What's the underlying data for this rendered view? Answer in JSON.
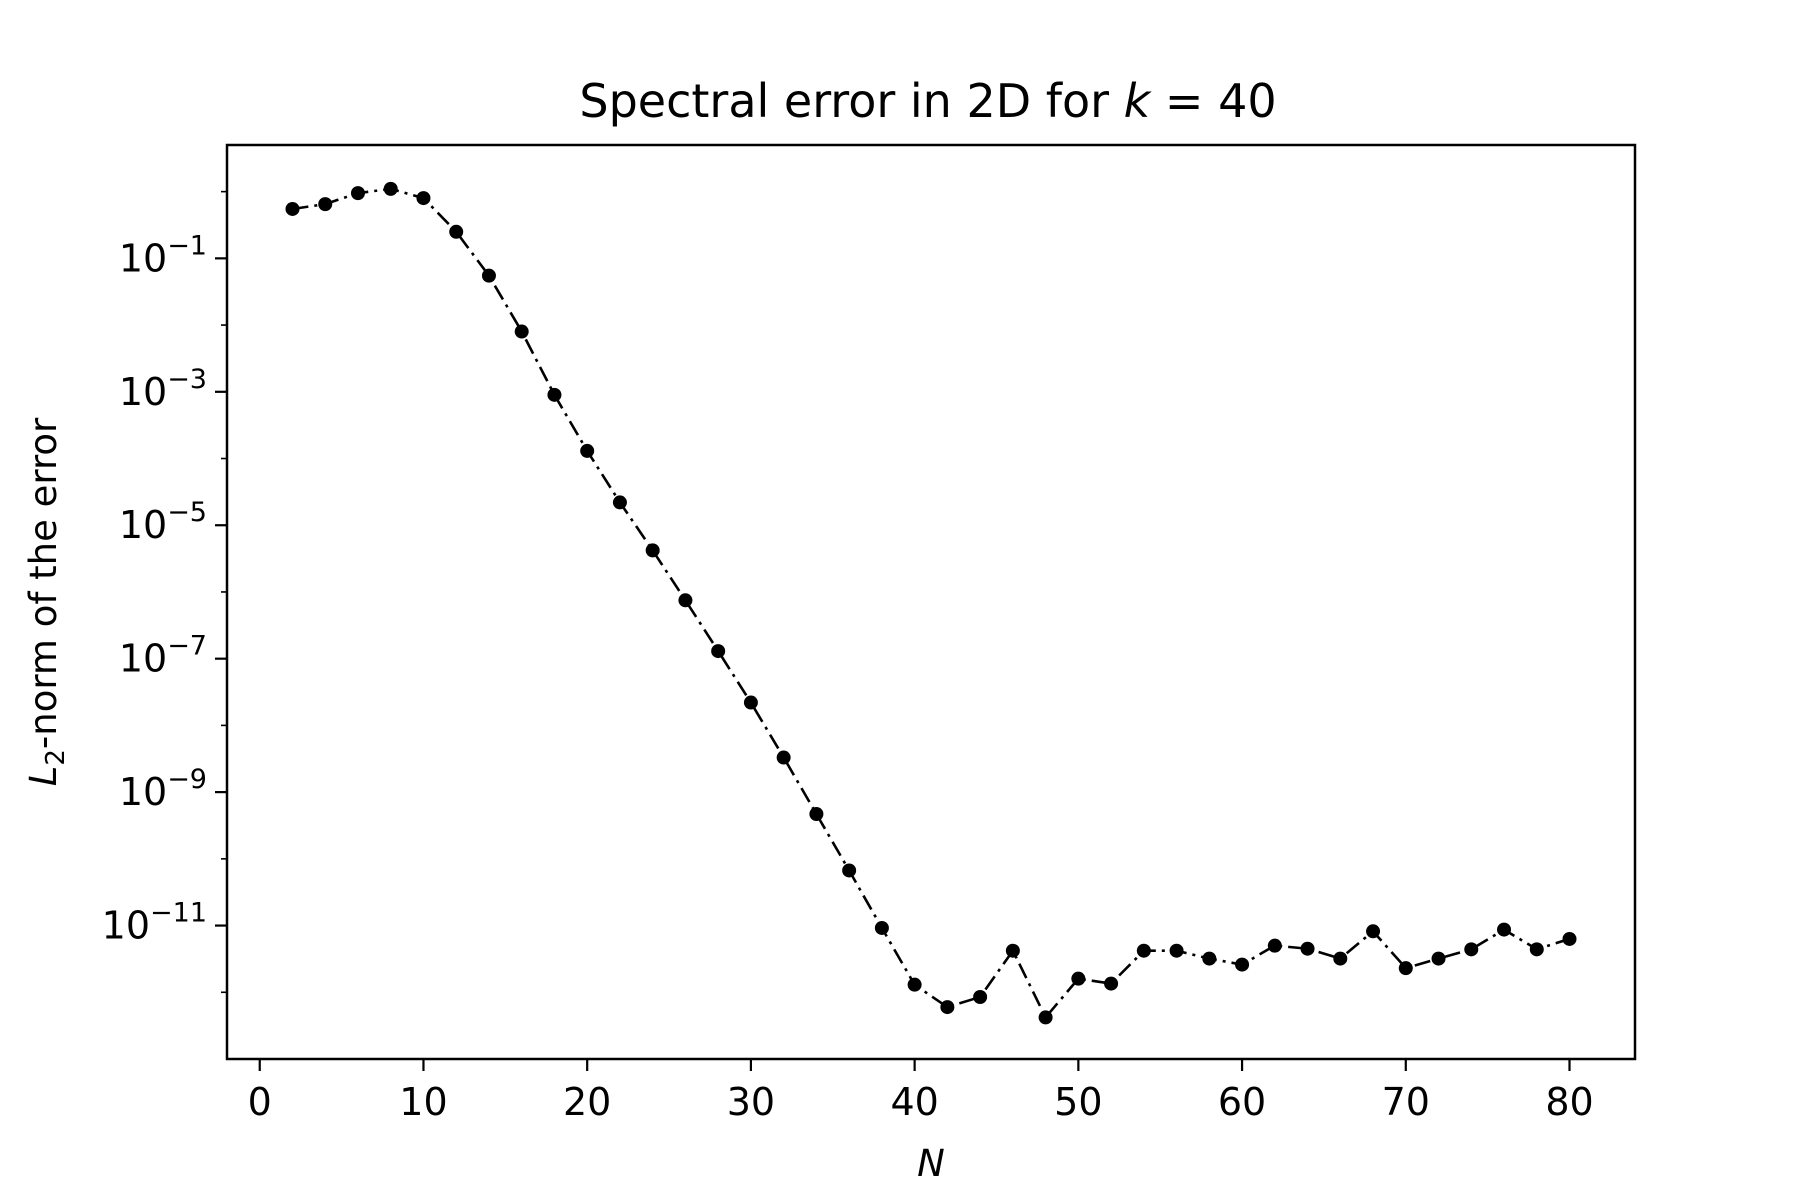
{
  "chart_data": {
    "type": "line",
    "title_prefix": "Spectral error in 2D for ",
    "title_var": "k",
    "title_suffix": " = 40",
    "xlabel": "N",
    "ylabel_var": "L",
    "ylabel_sub": "2",
    "ylabel_rest": "-norm of the error",
    "xscale": "linear",
    "yscale": "log",
    "xlim": [
      -2,
      84
    ],
    "ylim": [
      1e-13,
      5
    ],
    "grid": false,
    "legend": "none",
    "x_ticks": [
      0,
      10,
      20,
      30,
      40,
      50,
      60,
      70,
      80
    ],
    "x_tick_labels": [
      "0",
      "10",
      "20",
      "30",
      "40",
      "50",
      "60",
      "70",
      "80"
    ],
    "y_ticks": [
      {
        "value": 0.1,
        "base": "10",
        "exp": "−1"
      },
      {
        "value": 0.001,
        "base": "10",
        "exp": "−3"
      },
      {
        "value": 1e-05,
        "base": "10",
        "exp": "−5"
      },
      {
        "value": 1e-07,
        "base": "10",
        "exp": "−7"
      },
      {
        "value": 1e-09,
        "base": "10",
        "exp": "−9"
      },
      {
        "value": 1e-11,
        "base": "10",
        "exp": "−11"
      }
    ],
    "colors": {
      "line": "#000000",
      "marker": "#000000",
      "frame": "#000000",
      "background": "#ffffff"
    },
    "line_style": "dashdot",
    "marker": "circle",
    "series": [
      {
        "x": [
          2,
          4,
          6,
          8,
          10,
          12,
          14,
          16,
          18,
          20,
          22,
          24,
          26,
          28,
          30,
          32,
          34,
          36,
          38,
          40,
          42,
          44,
          46,
          48,
          50,
          52,
          54,
          56,
          58,
          60,
          62,
          64,
          66,
          68,
          70,
          72,
          74,
          76,
          78,
          80
        ],
        "y": [
          0.55,
          0.65,
          0.95,
          1.1,
          0.8,
          0.25,
          0.055,
          0.008,
          0.0009,
          0.00013,
          2.2e-05,
          4.2e-06,
          7.5e-07,
          1.3e-07,
          2.2e-08,
          3.3e-09,
          4.7e-10,
          6.7e-11,
          9.2e-12,
          1.3e-12,
          6e-13,
          8.5e-13,
          4.2e-12,
          4.2e-13,
          1.6e-12,
          1.35e-12,
          4.2e-12,
          4.2e-12,
          3.2e-12,
          2.6e-12,
          5e-12,
          4.5e-12,
          3.2e-12,
          8.2e-12,
          2.3e-12,
          3.2e-12,
          4.4e-12,
          8.7e-12,
          4.4e-12,
          6.3e-12
        ]
      }
    ]
  }
}
